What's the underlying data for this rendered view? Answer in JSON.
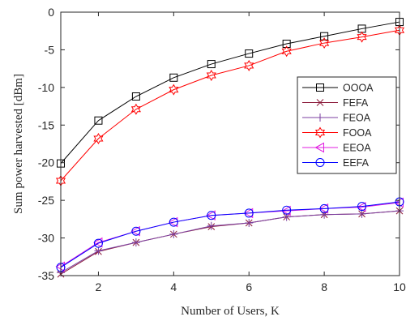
{
  "chart_data": {
    "type": "line",
    "title": "",
    "xlabel": "Number of Users, K",
    "ylabel": "Sum power harvested [dBm]",
    "xlim": [
      1,
      10
    ],
    "ylim": [
      -35,
      0
    ],
    "xticks": [
      2,
      4,
      6,
      8,
      10
    ],
    "yticks": [
      0,
      -5,
      -10,
      -15,
      -20,
      -25,
      -30,
      -35
    ],
    "grid": false,
    "legend_position": "center-right",
    "x": [
      1,
      2,
      3,
      4,
      5,
      6,
      7,
      8,
      9,
      10
    ],
    "series": [
      {
        "name": "OOOA",
        "color": "#000000",
        "marker": "square",
        "values": [
          -20.1,
          -14.4,
          -11.2,
          -8.7,
          -6.9,
          -5.5,
          -4.2,
          -3.2,
          -2.2,
          -1.3
        ]
      },
      {
        "name": "FEFA",
        "color": "#8b1a3a",
        "marker": "x",
        "values": [
          -34.8,
          -31.8,
          -30.6,
          -29.5,
          -28.5,
          -28.0,
          -27.2,
          -26.9,
          -26.8,
          -26.4
        ]
      },
      {
        "name": "FEOA",
        "color": "#7b3fa0",
        "marker": "plus",
        "values": [
          -34.6,
          -31.7,
          -30.6,
          -29.5,
          -28.4,
          -28.0,
          -27.2,
          -26.9,
          -26.8,
          -26.4
        ]
      },
      {
        "name": "FOOA",
        "color": "#ff0000",
        "marker": "hexagram",
        "values": [
          -22.4,
          -16.8,
          -12.9,
          -10.3,
          -8.4,
          -7.1,
          -5.2,
          -4.1,
          -3.3,
          -2.4
        ]
      },
      {
        "name": "EEOA",
        "color": "#e01ee0",
        "marker": "triangle-left",
        "values": [
          -33.8,
          -30.6,
          -29.1,
          -27.9,
          -27.0,
          -26.7,
          -26.4,
          -26.1,
          -25.9,
          -25.3
        ]
      },
      {
        "name": "EEFA",
        "color": "#0000ff",
        "marker": "circle",
        "values": [
          -33.9,
          -30.7,
          -29.1,
          -27.9,
          -27.0,
          -26.7,
          -26.3,
          -26.1,
          -25.8,
          -25.2
        ]
      }
    ]
  }
}
